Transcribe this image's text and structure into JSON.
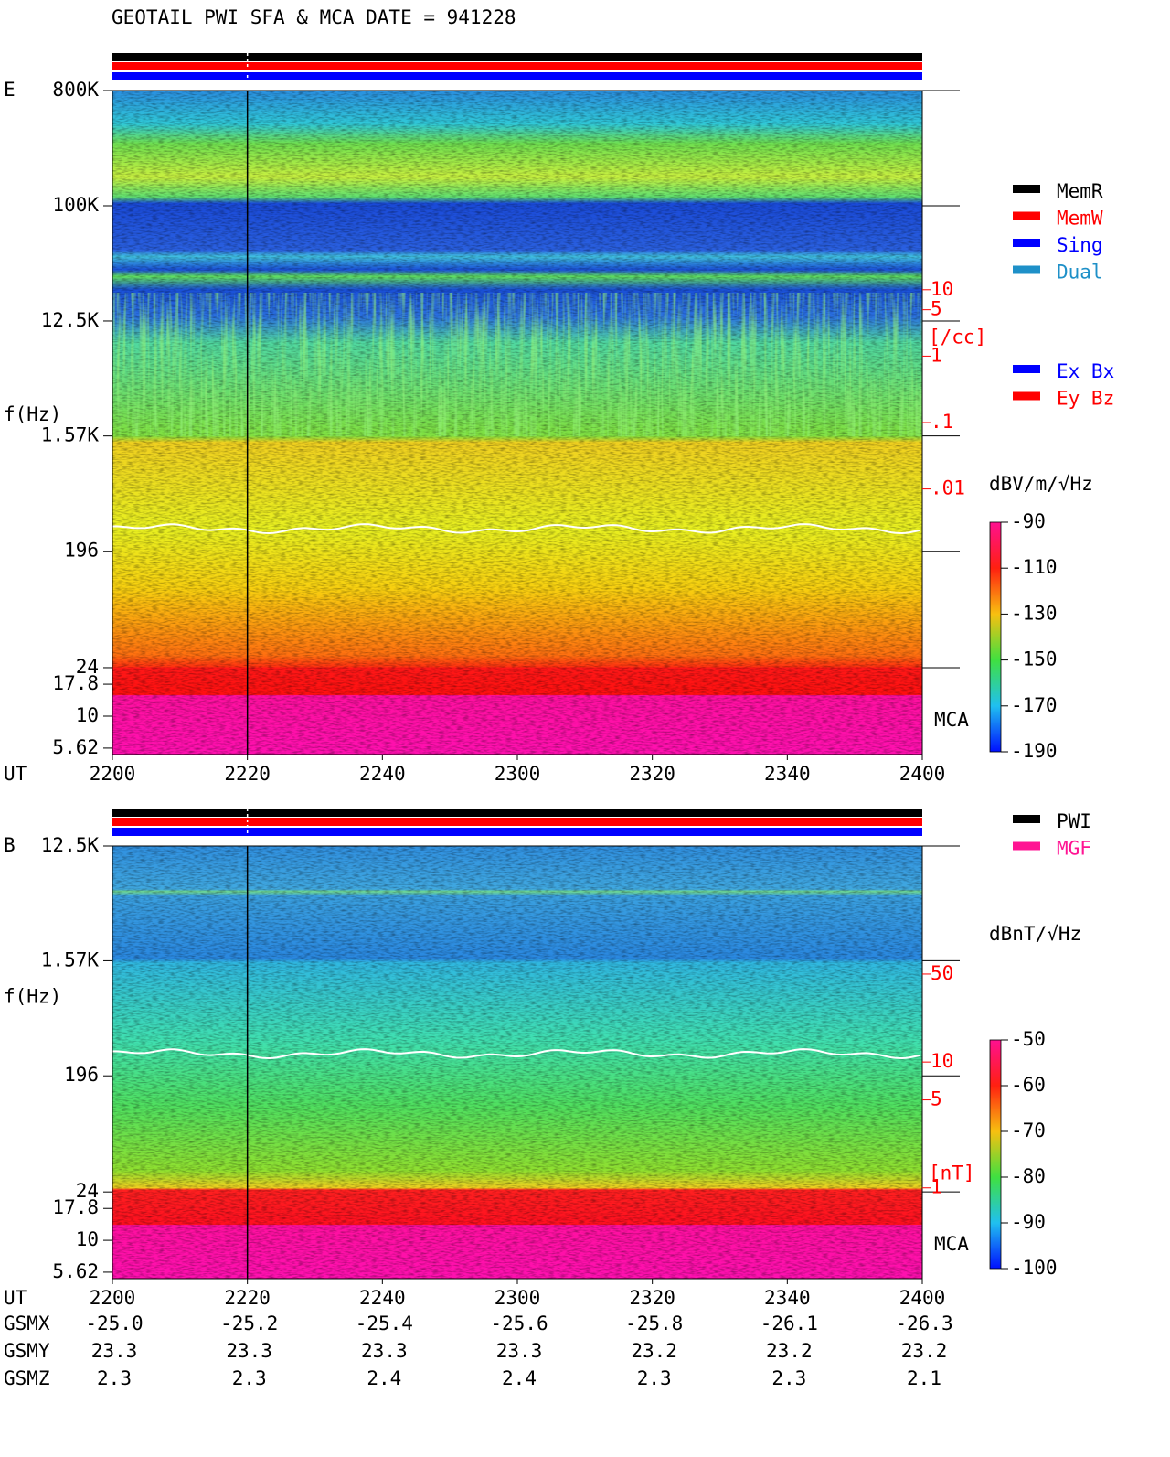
{
  "title": "GEOTAIL  PWI SFA & MCA   DATE = 941228",
  "chart_data": [
    {
      "type": "spectrogram",
      "panel_label": "E",
      "ylabel": "f(Hz)",
      "xlabel": "UT",
      "log_y": true,
      "xticks": [
        "2200",
        "2220",
        "2240",
        "2300",
        "2320",
        "2340",
        "2400"
      ],
      "ylim": [
        5,
        800000
      ],
      "yticks": [
        {
          "value": 800000,
          "label": "800K"
        },
        {
          "value": 100000,
          "label": "100K"
        },
        {
          "value": 12500,
          "label": "12.5K"
        },
        {
          "value": 1570,
          "label": "1.57K"
        },
        196,
        24,
        17.8,
        10,
        5.62
      ],
      "band_label": "MCA",
      "y2label": "[/cc]",
      "y2color": "#ff0000",
      "y2lim": [
        1e-06,
        10000
      ],
      "y2ticks": [
        10,
        5,
        1,
        {
          "value": 0.1,
          "label": ".1"
        },
        {
          "value": 0.01,
          "label": ".01"
        }
      ],
      "colorbar": {
        "label": "dBV/m/√Hz",
        "lim": [
          -190,
          -90
        ],
        "ticks": [
          -90,
          -110,
          -130,
          -150,
          -170,
          -190
        ]
      },
      "legend": [
        [
          {
            "name": "MemR",
            "color": "#000000"
          },
          {
            "name": "MemW",
            "color": "#ff0000"
          },
          {
            "name": "Sing",
            "color": "#0000ff"
          },
          {
            "name": "Dual",
            "color": "#1e90c8"
          }
        ],
        [
          {
            "name": "Ex Bx",
            "color": "#0000ff"
          },
          {
            "name": "Ey Bz",
            "color": "#ff0000"
          }
        ]
      ]
    },
    {
      "type": "spectrogram",
      "panel_label": "B",
      "ylabel": "f(Hz)",
      "xlabel": "UT",
      "log_y": true,
      "xticks": [
        "2200",
        "2220",
        "2240",
        "2300",
        "2320",
        "2340",
        "2400"
      ],
      "ylim": [
        5,
        12500
      ],
      "yticks": [
        {
          "value": 12500,
          "label": "12.5K"
        },
        {
          "value": 1570,
          "label": "1.57K"
        },
        196,
        24,
        17.8,
        10,
        5.62
      ],
      "band_label": "MCA",
      "y2label": "[nT]",
      "y2color": "#ff0000",
      "y2lim": [
        0.19,
        520
      ],
      "y2ticks": [
        50,
        10,
        5,
        1
      ],
      "colorbar": {
        "label": "dBnT/√Hz",
        "lim": [
          -100,
          -50
        ],
        "ticks": [
          -50,
          -60,
          -70,
          -80,
          -90,
          -100
        ]
      },
      "legend": [
        [
          {
            "name": "PWI",
            "color": "#000000"
          },
          {
            "name": "MGF",
            "color": "#ff1493"
          }
        ]
      ]
    }
  ],
  "ephemeris": {
    "rows": [
      {
        "name": "GSMX",
        "values": [
          "-25.0",
          "-25.2",
          "-25.4",
          "-25.6",
          "-25.8",
          "-26.1",
          "-26.3"
        ]
      },
      {
        "name": "GSMY",
        "values": [
          "23.3",
          "23.3",
          "23.3",
          "23.3",
          "23.2",
          "23.2",
          "23.2"
        ]
      },
      {
        "name": "GSMZ",
        "values": [
          "2.3",
          "2.3",
          "2.4",
          "2.4",
          "2.3",
          "2.3",
          "2.1"
        ]
      }
    ]
  }
}
